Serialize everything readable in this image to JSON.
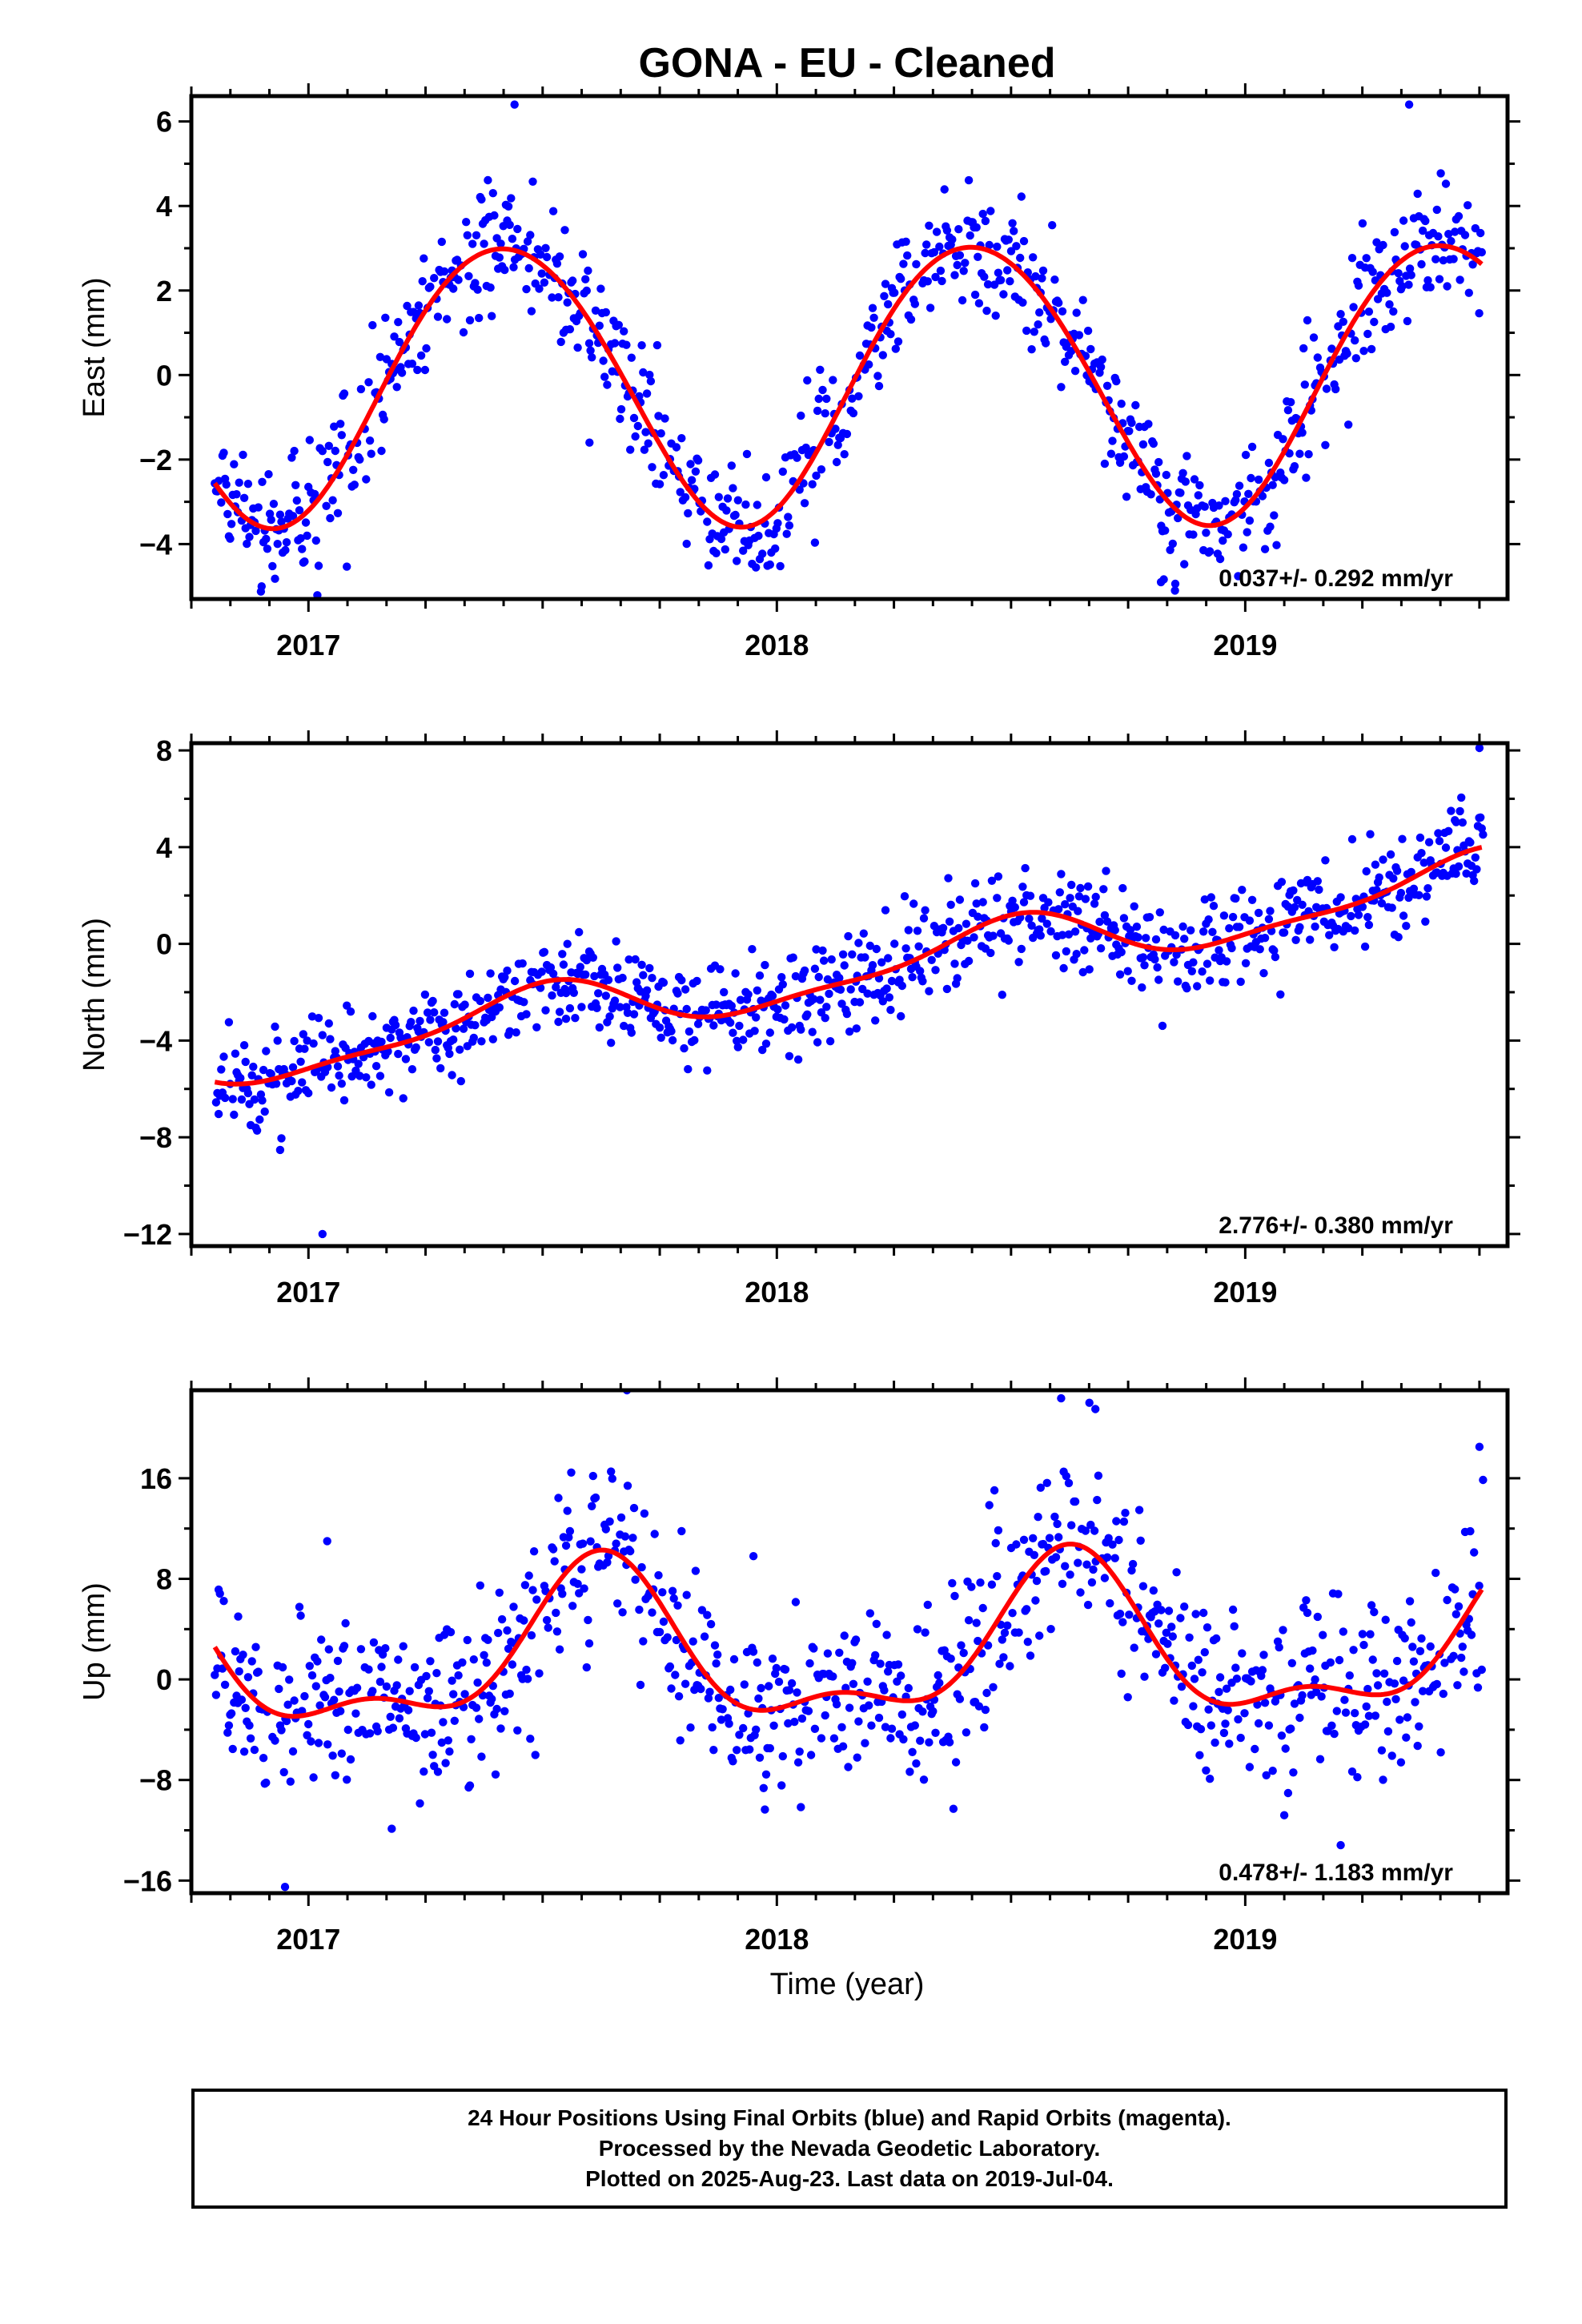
{
  "title": "GONA  - EU - Cleaned",
  "x_axis_label": "Time (year)",
  "footer": {
    "line1": "24 Hour Positions Using Final Orbits (blue) and Rapid Orbits (magenta).",
    "line2": "Processed by the Nevada Geodetic Laboratory.",
    "line3": "Plotted on 2025-Aug-23. Last data on 2019-Jul-04."
  },
  "colors": {
    "final_orbits": "#0000ff",
    "fit": "#ff0000",
    "frame": "#000000"
  },
  "chart_data": [
    {
      "type": "scatter",
      "component": "east",
      "ylabel": "East (mm)",
      "xlim": [
        2016.75,
        2019.56
      ],
      "ylim": [
        -5.3,
        6.6
      ],
      "xticks": [
        2017,
        2018,
        2019
      ],
      "yticks": [
        -4,
        -2,
        0,
        2,
        4,
        6
      ],
      "ytick_labels": [
        "−4",
        "−2",
        "0",
        "2",
        "4",
        "6"
      ],
      "rate_text": "0.037+/- 0.292 mm/yr",
      "fit": {
        "x0": 2016.8,
        "offset": -0.2,
        "rate": 0.037,
        "annual_amp": 3.3,
        "annual_peak": 2017.42,
        "semiannual_amp": 0.15,
        "semiannual_peak": 2017.2
      },
      "scatter_sd": 0.75,
      "outliers": [
        [
          2016.9,
          -5.0
        ],
        [
          2017.44,
          6.4
        ],
        [
          2019.35,
          6.4
        ],
        [
          2018.85,
          -5.1
        ],
        [
          2017.6,
          -1.6
        ],
        [
          2018.82,
          -4.9
        ]
      ]
    },
    {
      "type": "scatter",
      "component": "north",
      "ylabel": "North (mm)",
      "xlim": [
        2016.75,
        2019.56
      ],
      "ylim": [
        -12.5,
        8.3
      ],
      "xticks": [
        2017,
        2018,
        2019
      ],
      "yticks": [
        -12,
        -8,
        -4,
        0,
        4,
        8
      ],
      "ytick_labels": [
        "−12",
        "−8",
        "−4",
        "0",
        "4",
        "8"
      ],
      "rate_text": "2.776+/- 0.380 mm/yr",
      "fit": {
        "x0": 2016.8,
        "offset": -4.9,
        "rate": 2.776,
        "annual_amp": 1.1,
        "annual_peak": 2017.48,
        "semiannual_amp": 0.35,
        "semiannual_peak": 2017.05
      },
      "scatter_sd": 1.0,
      "outliers": [
        [
          2017.03,
          -12.0
        ],
        [
          2019.5,
          8.1
        ],
        [
          2017.55,
          -3.1
        ],
        [
          2018.17,
          -3.5
        ],
        [
          2019.45,
          2.9
        ]
      ]
    },
    {
      "type": "scatter",
      "component": "up",
      "ylabel": "Up (mm)",
      "xlim": [
        2016.75,
        2019.56
      ],
      "ylim": [
        -17.0,
        23.0
      ],
      "xticks": [
        2017,
        2018,
        2019
      ],
      "yticks": [
        -16,
        -8,
        0,
        8,
        16
      ],
      "ytick_labels": [
        "−16",
        "−8",
        "0",
        "8",
        "16"
      ],
      "rate_text": "0.478+/- 1.183 mm/yr",
      "fit": {
        "x0": 2016.8,
        "offset": 1.5,
        "rate": 0.478,
        "annual_amp": 5.8,
        "annual_peak": 2017.62,
        "semiannual_amp": 2.6,
        "semiannual_peak": 2017.13
      },
      "scatter_sd": 3.6,
      "outliers": [
        [
          2017.68,
          23.0
        ],
        [
          2018.68,
          21.5
        ],
        [
          2016.95,
          -16.5
        ],
        [
          2017.04,
          11.0
        ],
        [
          2017.95,
          9.8
        ],
        [
          2019.5,
          18.5
        ],
        [
          2016.85,
          5.0
        ]
      ]
    }
  ]
}
